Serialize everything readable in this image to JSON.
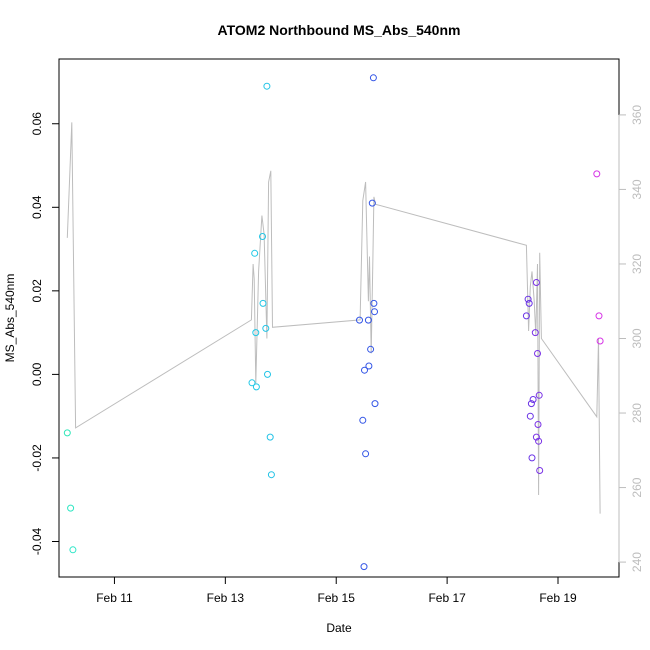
{
  "chart_data": {
    "type": "scatter",
    "title": "ATOM2 Northbound MS_Abs_540nm",
    "xlabel": "Date",
    "ylabel": "MS_Abs_540nm",
    "x_range_days": [
      10.0,
      20.1
    ],
    "x_ticks": [
      {
        "day": 11,
        "label": "Feb 11"
      },
      {
        "day": 13,
        "label": "Feb 13"
      },
      {
        "day": 15,
        "label": "Feb 15"
      },
      {
        "day": 17,
        "label": "Feb 17"
      },
      {
        "day": 19,
        "label": "Feb 19"
      }
    ],
    "ylim": [
      -0.0485,
      0.0755
    ],
    "y_ticks": [
      {
        "value": -0.04,
        "label": "-0.04"
      },
      {
        "value": -0.02,
        "label": "-0.02"
      },
      {
        "value": 0.0,
        "label": "0.00"
      },
      {
        "value": 0.02,
        "label": "0.02"
      },
      {
        "value": 0.04,
        "label": "0.04"
      },
      {
        "value": 0.06,
        "label": "0.06"
      }
    ],
    "y2lim": [
      236,
      375
    ],
    "y2_ticks": [
      {
        "value": 240,
        "label": "240"
      },
      {
        "value": 260,
        "label": "260"
      },
      {
        "value": 280,
        "label": "280"
      },
      {
        "value": 300,
        "label": "300"
      },
      {
        "value": 320,
        "label": "320"
      },
      {
        "value": 340,
        "label": "340"
      },
      {
        "value": 360,
        "label": "360"
      }
    ],
    "points": [
      {
        "x": 10.15,
        "y": -0.014,
        "color": "#2ee6b8"
      },
      {
        "x": 10.21,
        "y": -0.032,
        "color": "#2ee6c2"
      },
      {
        "x": 10.25,
        "y": -0.042,
        "color": "#2ee6c8"
      },
      {
        "x": 13.48,
        "y": -0.002,
        "color": "#22c8e6"
      },
      {
        "x": 13.53,
        "y": 0.029,
        "color": "#22c8e6"
      },
      {
        "x": 13.55,
        "y": 0.01,
        "color": "#22c8e6"
      },
      {
        "x": 13.56,
        "y": -0.003,
        "color": "#22c8e6"
      },
      {
        "x": 13.67,
        "y": 0.033,
        "color": "#22c6e6"
      },
      {
        "x": 13.68,
        "y": 0.017,
        "color": "#22c6e6"
      },
      {
        "x": 13.73,
        "y": 0.011,
        "color": "#22c4e6"
      },
      {
        "x": 13.75,
        "y": 0.069,
        "color": "#22c4e6"
      },
      {
        "x": 13.76,
        "y": 0.0,
        "color": "#22c4e6"
      },
      {
        "x": 13.81,
        "y": -0.015,
        "color": "#22c2e6"
      },
      {
        "x": 13.83,
        "y": -0.024,
        "color": "#22c2e6"
      },
      {
        "x": 15.42,
        "y": 0.013,
        "color": "#3355e6"
      },
      {
        "x": 15.48,
        "y": -0.011,
        "color": "#3355e6"
      },
      {
        "x": 15.5,
        "y": -0.046,
        "color": "#3355e6"
      },
      {
        "x": 15.51,
        "y": 0.001,
        "color": "#3355e6"
      },
      {
        "x": 15.53,
        "y": -0.019,
        "color": "#3355e6"
      },
      {
        "x": 15.58,
        "y": 0.013,
        "color": "#3355e6"
      },
      {
        "x": 15.59,
        "y": 0.002,
        "color": "#3355e6"
      },
      {
        "x": 15.62,
        "y": 0.006,
        "color": "#3355e6"
      },
      {
        "x": 15.65,
        "y": 0.041,
        "color": "#3355e6"
      },
      {
        "x": 15.67,
        "y": 0.071,
        "color": "#3355e6"
      },
      {
        "x": 15.68,
        "y": 0.017,
        "color": "#3355e6"
      },
      {
        "x": 15.69,
        "y": 0.015,
        "color": "#3355e6"
      },
      {
        "x": 15.7,
        "y": -0.007,
        "color": "#3355e6"
      },
      {
        "x": 18.43,
        "y": 0.014,
        "color": "#6a33e6"
      },
      {
        "x": 18.46,
        "y": 0.018,
        "color": "#6a33e6"
      },
      {
        "x": 18.48,
        "y": 0.017,
        "color": "#6a33e6"
      },
      {
        "x": 18.5,
        "y": -0.01,
        "color": "#6a33e6"
      },
      {
        "x": 18.52,
        "y": -0.007,
        "color": "#6a33e6"
      },
      {
        "x": 18.53,
        "y": -0.02,
        "color": "#6a33e6"
      },
      {
        "x": 18.55,
        "y": -0.006,
        "color": "#6a33e6"
      },
      {
        "x": 18.59,
        "y": 0.01,
        "color": "#7a33e6"
      },
      {
        "x": 18.61,
        "y": -0.015,
        "color": "#7a33e6"
      },
      {
        "x": 18.61,
        "y": 0.022,
        "color": "#7a33e6"
      },
      {
        "x": 18.63,
        "y": 0.005,
        "color": "#7a33e6"
      },
      {
        "x": 18.64,
        "y": -0.012,
        "color": "#7a33e6"
      },
      {
        "x": 18.65,
        "y": -0.016,
        "color": "#7a33e6"
      },
      {
        "x": 18.66,
        "y": -0.005,
        "color": "#7a33e6"
      },
      {
        "x": 18.67,
        "y": -0.023,
        "color": "#7a33e6"
      },
      {
        "x": 19.7,
        "y": 0.048,
        "color": "#d633e6"
      },
      {
        "x": 19.74,
        "y": 0.014,
        "color": "#d633e6"
      },
      {
        "x": 19.76,
        "y": 0.008,
        "color": "#d633e6"
      }
    ],
    "line_series": {
      "axis": "right",
      "color": "#bdbdbd",
      "x": [
        10.15,
        10.23,
        10.3,
        13.47,
        13.5,
        13.52,
        13.55,
        13.6,
        13.66,
        13.7,
        13.75,
        13.78,
        13.82,
        13.85,
        15.43,
        15.48,
        15.53,
        15.58,
        15.6,
        15.63,
        15.66,
        15.68,
        15.71,
        18.43,
        18.47,
        18.5,
        18.53,
        18.57,
        18.6,
        18.63,
        18.65,
        18.67,
        18.7,
        19.7,
        19.73,
        19.76
      ],
      "y": [
        327,
        358,
        276,
        305,
        320,
        316,
        288,
        318,
        333,
        328,
        300,
        342,
        345,
        303,
        305,
        337,
        342,
        310,
        322,
        296,
        320,
        338,
        336,
        325,
        302,
        314,
        318,
        310,
        301,
        320,
        258,
        323,
        300,
        279,
        300,
        253
      ]
    }
  }
}
